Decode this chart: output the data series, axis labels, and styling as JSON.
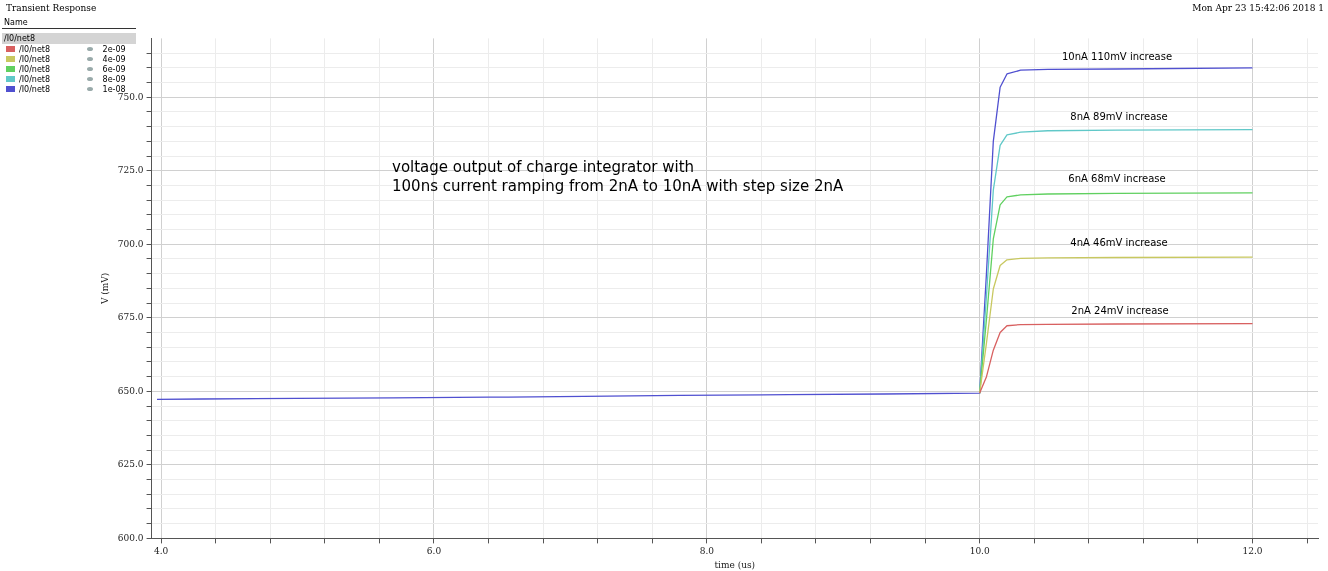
{
  "chart_data": {
    "type": "line",
    "title": "Transient Response",
    "xlabel": "time (us)",
    "ylabel": "V (mV)",
    "legend_title": "/I0/net8",
    "legend": "left",
    "grid": true,
    "marker": "none",
    "line_style": "solid",
    "annotations": [
      "Mon Apr 23 15:42:06 2018  1",
      "Name",
      "voltage output of charge integrator with\n100ns current ramping from 2nA to 10nA with step size 2nA",
      "10nA 110mV increase",
      "8nA 89mV increase",
      "6nA 68mV increase",
      "4nA 46mV increase",
      "2nA 24mV increase"
    ],
    "x": [
      3.97,
      4.3,
      5,
      5.7,
      6.4,
      7.1,
      7.8,
      8.6,
      9.3,
      10.0,
      10.05,
      10.1,
      10.15,
      10.2,
      10.3,
      10.5,
      11,
      12
    ],
    "series": [
      {
        "name": "/I0/net8 2e-09",
        "color": "#d86060",
        "values": [
          null,
          null,
          null,
          null,
          null,
          null,
          null,
          null,
          null,
          649.4,
          655,
          664,
          670,
          672.3,
          672.7,
          672.8,
          672.9,
          673.0
        ]
      },
      {
        "name": "/I0/net8 4e-09",
        "color": "#c8c860",
        "values": [
          null,
          null,
          null,
          null,
          null,
          null,
          null,
          null,
          null,
          649.4,
          666.5,
          684.8,
          692.8,
          694.7,
          695.2,
          695.4,
          695.5,
          695.6
        ]
      },
      {
        "name": "/I0/net8 6e-09",
        "color": "#60d060",
        "values": [
          null,
          null,
          null,
          null,
          null,
          null,
          null,
          null,
          null,
          649.4,
          674.6,
          701.8,
          713.4,
          716.1,
          716.8,
          717.1,
          717.3,
          717.5
        ]
      },
      {
        "name": "/I0/net8 8e-09",
        "color": "#60c8c8",
        "values": [
          null,
          null,
          null,
          null,
          null,
          null,
          null,
          null,
          null,
          649.4,
          682.6,
          718.4,
          733.6,
          737.2,
          738.1,
          738.6,
          738.8,
          739.0
        ]
      },
      {
        "name": "/I0/net8 1e-08",
        "color": "#5050d0",
        "values": [
          647.3,
          647.4,
          647.6,
          647.8,
          648.0,
          648.3,
          648.6,
          648.9,
          649.1,
          649.4,
          690.3,
          735.0,
          753.4,
          757.9,
          759.2,
          759.5,
          759.6,
          760.0
        ]
      }
    ],
    "xlim": [
      3.93,
      12.48
    ],
    "ylim": [
      600,
      770
    ],
    "xticks": [
      {
        "value": 4,
        "label": "4.0"
      },
      {
        "value": 4.4,
        "label": null
      },
      {
        "value": 4.8,
        "label": null
      },
      {
        "value": 5.2,
        "label": null
      },
      {
        "value": 5.6,
        "label": null
      },
      {
        "value": 6,
        "label": "6.0"
      },
      {
        "value": 6.4,
        "label": null
      },
      {
        "value": 6.8,
        "label": null
      },
      {
        "value": 7.2,
        "label": null
      },
      {
        "value": 7.6,
        "label": null
      },
      {
        "value": 8,
        "label": "8.0"
      },
      {
        "value": 8.4,
        "label": null
      },
      {
        "value": 8.8,
        "label": null
      },
      {
        "value": 9.2,
        "label": null
      },
      {
        "value": 9.6,
        "label": null
      },
      {
        "value": 10,
        "label": "10.0"
      },
      {
        "value": 10.4,
        "label": null
      },
      {
        "value": 10.8,
        "label": null
      },
      {
        "value": 11.2,
        "label": null
      },
      {
        "value": 11.6,
        "label": null
      },
      {
        "value": 12,
        "label": "12.0"
      },
      {
        "value": 12.4,
        "label": null
      }
    ],
    "yticks": [
      {
        "value": 600,
        "label": "600.0"
      },
      {
        "value": 605,
        "label": null
      },
      {
        "value": 610,
        "label": null
      },
      {
        "value": 615,
        "label": null
      },
      {
        "value": 620,
        "label": null
      },
      {
        "value": 625,
        "label": "625.0"
      },
      {
        "value": 630,
        "label": null
      },
      {
        "value": 635,
        "label": null
      },
      {
        "value": 640,
        "label": null
      },
      {
        "value": 645,
        "label": null
      },
      {
        "value": 650,
        "label": "650.0"
      },
      {
        "value": 655,
        "label": null
      },
      {
        "value": 660,
        "label": null
      },
      {
        "value": 665,
        "label": null
      },
      {
        "value": 670,
        "label": null
      },
      {
        "value": 675,
        "label": "675.0"
      },
      {
        "value": 680,
        "label": null
      },
      {
        "value": 685,
        "label": null
      },
      {
        "value": 690,
        "label": null
      },
      {
        "value": 695,
        "label": null
      },
      {
        "value": 700,
        "label": "700.0"
      },
      {
        "value": 705,
        "label": null
      },
      {
        "value": 710,
        "label": null
      },
      {
        "value": 715,
        "label": null
      },
      {
        "value": 720,
        "label": null
      },
      {
        "value": 725,
        "label": "725.0"
      },
      {
        "value": 730,
        "label": null
      },
      {
        "value": 735,
        "label": null
      },
      {
        "value": 740,
        "label": null
      },
      {
        "value": 745,
        "label": null
      },
      {
        "value": 750,
        "label": "750.0"
      },
      {
        "value": 755,
        "label": null
      },
      {
        "value": 760,
        "label": null
      },
      {
        "value": 765,
        "label": null
      }
    ]
  }
}
